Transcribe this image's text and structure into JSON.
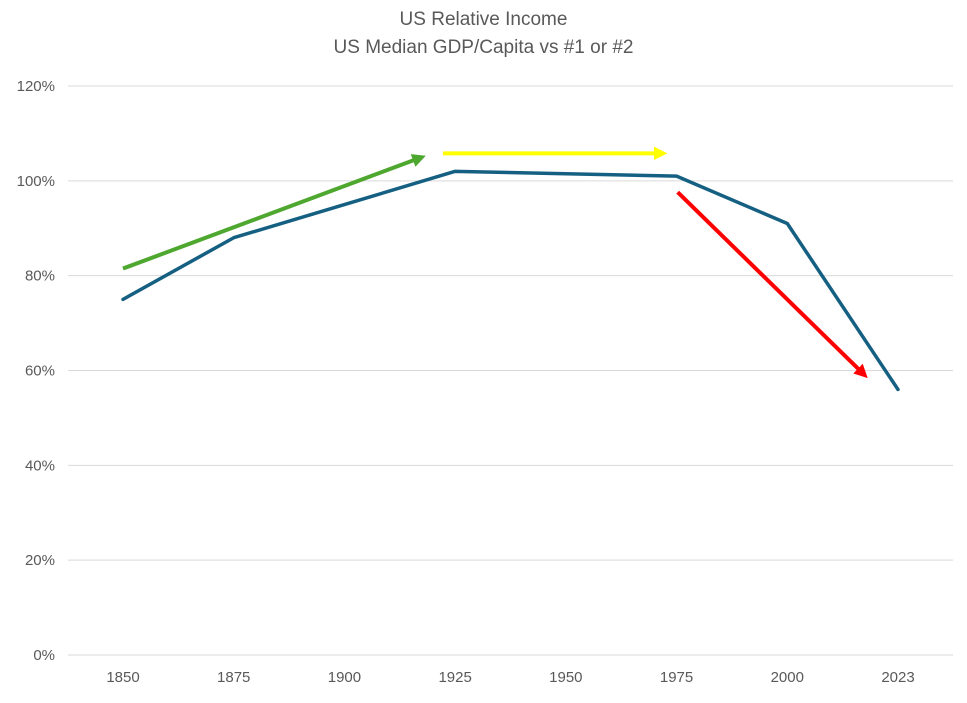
{
  "page": {
    "background": "#FFFFFF"
  },
  "title": {
    "line1": "US Relative Income",
    "line2": "US Median GDP/Capita vs #1 or #2",
    "color": "#595959"
  },
  "chart_data": {
    "type": "line",
    "title": "US Relative Income",
    "subtitle": "US Median GDP/Capita vs #1 or #2",
    "categories": [
      "1850",
      "1875",
      "1900",
      "1925",
      "1950",
      "1975",
      "2000",
      "2023"
    ],
    "series": [
      {
        "name": "US median GDP per capita vs #1 or #2 country",
        "color": "#156082",
        "line_width": 3.5,
        "values": [
          75,
          88,
          95,
          102,
          101.5,
          101,
          91,
          56
        ]
      }
    ],
    "unit": "%",
    "y_axis": {
      "min": 0,
      "max": 120,
      "step": 20,
      "tick_values": [
        0,
        20,
        40,
        60,
        80,
        100,
        120
      ],
      "tick_labels": [
        "0%",
        "20%",
        "40%",
        "60%",
        "80%",
        "100%",
        "120%"
      ],
      "label_color": "#595959"
    },
    "x_axis": {
      "tick_labels": [
        "1850",
        "1875",
        "1900",
        "1925",
        "1950",
        "1975",
        "2000",
        "2023"
      ],
      "label_color": "#595959"
    },
    "grid": {
      "visible": true,
      "color": "#D9D9D9"
    },
    "legend": "none",
    "annotations": [
      {
        "name": "rising-trend-arrow",
        "shape": "arrow",
        "color": "#4EA72E",
        "width": 4,
        "from": {
          "index": 0.0,
          "pct": 81.5
        },
        "to": {
          "index": 2.7,
          "pct": 105
        }
      },
      {
        "name": "flat-trend-arrow",
        "shape": "arrow",
        "color": "#FFFF00",
        "width": 4,
        "from": {
          "index": 2.89,
          "pct": 105.8
        },
        "to": {
          "index": 4.88,
          "pct": 105.8
        }
      },
      {
        "name": "falling-trend-arrow",
        "shape": "arrow",
        "color": "#FF0000",
        "width": 4,
        "from": {
          "index": 5.01,
          "pct": 97.6
        },
        "to": {
          "index": 6.7,
          "pct": 59
        }
      }
    ]
  }
}
